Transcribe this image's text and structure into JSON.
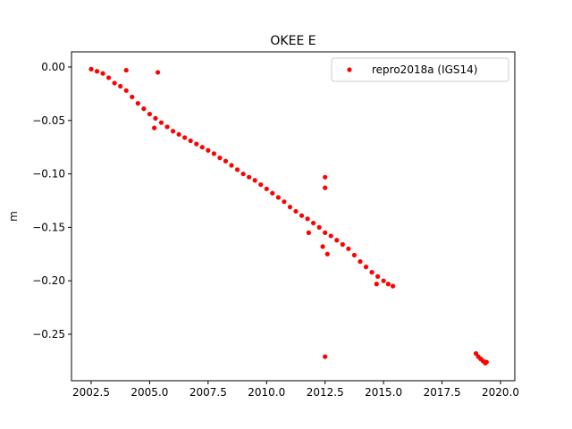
{
  "chart_data": {
    "type": "scatter",
    "title": "OKEE E",
    "y_label": "m",
    "x": [
      2002.5,
      2002.75,
      2003,
      2003.25,
      2003.5,
      2003.75,
      2004,
      2004.25,
      2004.5,
      2004.75,
      2005,
      2005.25,
      2005.5,
      2005.75,
      2006,
      2006.25,
      2006.5,
      2006.75,
      2007,
      2007.25,
      2007.5,
      2007.75,
      2008,
      2008.25,
      2008.5,
      2008.75,
      2009,
      2009.25,
      2009.5,
      2009.75,
      2010,
      2010.25,
      2010.5,
      2010.75,
      2011,
      2011.25,
      2011.5,
      2011.75,
      2012,
      2012.25,
      2012.5,
      2012.75,
      2013,
      2013.25,
      2013.5,
      2013.75,
      2014,
      2014.25,
      2014.5,
      2014.75,
      2015,
      2015.2,
      2015.4,
      2018.95,
      2019.05,
      2019.15,
      2019.25,
      2019.35,
      2019.4,
      2004.0,
      2005.35,
      2005.2,
      2012.5,
      2012.5,
      2012.5,
      2012.4,
      2012.6,
      2014.7,
      2011.8
    ],
    "series": [
      {
        "name": "repro2018a (IGS14)",
        "color": "#ff0000",
        "values": [
          -0.002,
          -0.004,
          -0.006,
          -0.01,
          -0.015,
          -0.018,
          -0.022,
          -0.028,
          -0.034,
          -0.039,
          -0.044,
          -0.048,
          -0.052,
          -0.056,
          -0.06,
          -0.063,
          -0.066,
          -0.069,
          -0.072,
          -0.075,
          -0.078,
          -0.081,
          -0.085,
          -0.088,
          -0.092,
          -0.096,
          -0.1,
          -0.103,
          -0.106,
          -0.11,
          -0.114,
          -0.118,
          -0.122,
          -0.126,
          -0.131,
          -0.135,
          -0.139,
          -0.142,
          -0.146,
          -0.15,
          -0.155,
          -0.158,
          -0.162,
          -0.166,
          -0.17,
          -0.176,
          -0.182,
          -0.187,
          -0.192,
          -0.196,
          -0.2,
          -0.203,
          -0.205,
          -0.268,
          -0.271,
          -0.273,
          -0.275,
          -0.277,
          -0.276,
          -0.003,
          -0.005,
          -0.057,
          -0.103,
          -0.113,
          -0.271,
          -0.168,
          -0.175,
          -0.203,
          -0.155
        ]
      }
    ],
    "xlim": [
      2001.66,
      2020.61
    ],
    "ylim": [
      -0.2935,
      0.0142
    ],
    "xticks": [
      {
        "value": 2002.5,
        "label": "2002.5"
      },
      {
        "value": 2005,
        "label": "2005.0"
      },
      {
        "value": 2007.5,
        "label": "2007.5"
      },
      {
        "value": 2010,
        "label": "2010.0"
      },
      {
        "value": 2012.5,
        "label": "2012.5"
      },
      {
        "value": 2015,
        "label": "2015.0"
      },
      {
        "value": 2017.5,
        "label": "2017.5"
      },
      {
        "value": 2020,
        "label": "2020.0"
      }
    ],
    "yticks": [
      {
        "value": 0,
        "label": "0.00"
      },
      {
        "value": -0.05,
        "label": "−0.05"
      },
      {
        "value": -0.1,
        "label": "−0.10"
      },
      {
        "value": -0.15,
        "label": "−0.15"
      },
      {
        "value": -0.2,
        "label": "−0.20"
      },
      {
        "value": -0.25,
        "label": "−0.25"
      }
    ],
    "legend": "upper right"
  }
}
